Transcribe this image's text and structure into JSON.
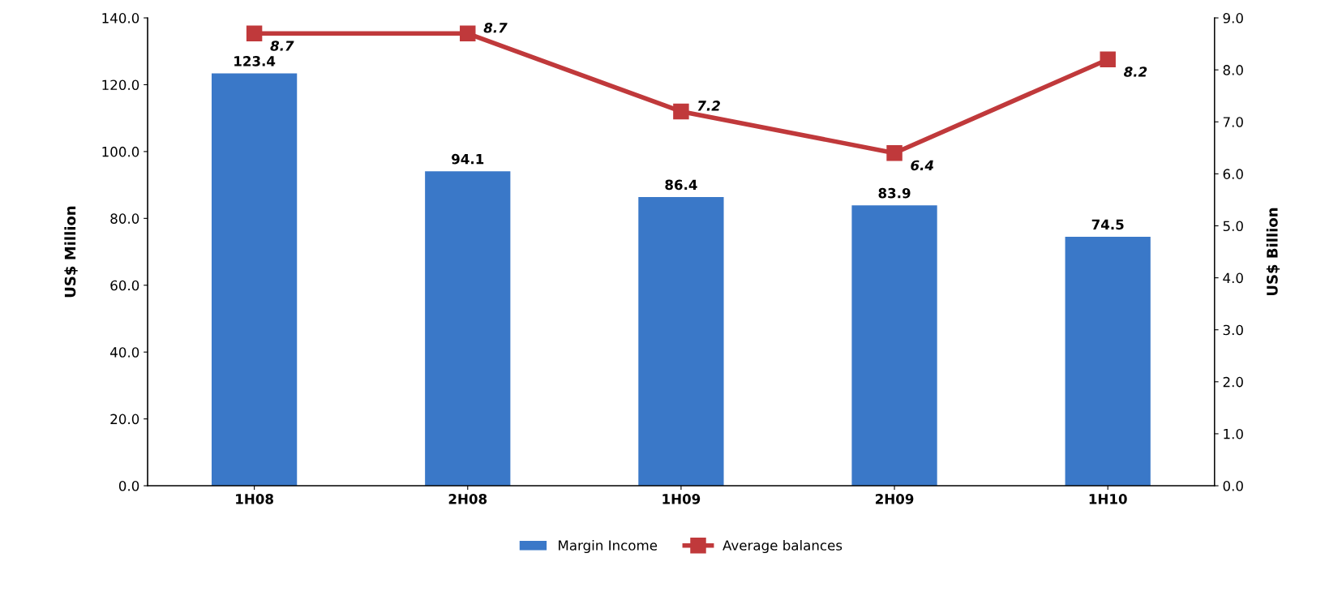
{
  "chart_data": {
    "type": "bar",
    "ylabel": "US$ Million",
    "y2label": "US$ Billion",
    "categories": [
      "1H08",
      "2H08",
      "1H09",
      "2H09",
      "1H10"
    ],
    "series": [
      {
        "name": "Margin Income",
        "color": "#3a78c8",
        "values": [
          123.4,
          94.1,
          86.4,
          83.9,
          74.5
        ],
        "value_labels": [
          "123.4",
          "94.1",
          "86.4",
          "83.9",
          "74.5"
        ]
      },
      {
        "name": "Average balances",
        "type": "line",
        "axis": "y2",
        "color": "#c0393b",
        "marker": "square",
        "values": [
          8.7,
          8.7,
          7.2,
          6.4,
          8.2
        ],
        "value_labels": [
          "8.7",
          "8.7",
          "7.2",
          "6.4",
          "8.2"
        ]
      }
    ],
    "ylim": [
      0,
      140
    ],
    "yticks": [
      {
        "value": 0,
        "label": "0.0"
      },
      {
        "value": 20,
        "label": "20.0"
      },
      {
        "value": 40,
        "label": "40.0"
      },
      {
        "value": 60,
        "label": "60.0"
      },
      {
        "value": 80,
        "label": "80.0"
      },
      {
        "value": 100,
        "label": "100.0"
      },
      {
        "value": 120,
        "label": "120.0"
      },
      {
        "value": 140,
        "label": "140.0"
      }
    ],
    "y2lim": [
      0,
      9
    ],
    "y2ticks": [
      {
        "value": 0,
        "label": "0.0"
      },
      {
        "value": 1,
        "label": "1.0"
      },
      {
        "value": 2,
        "label": "2.0"
      },
      {
        "value": 3,
        "label": "3.0"
      },
      {
        "value": 4,
        "label": "4.0"
      },
      {
        "value": 5,
        "label": "5.0"
      },
      {
        "value": 6,
        "label": "6.0"
      },
      {
        "value": 7,
        "label": "7.0"
      },
      {
        "value": 8,
        "label": "8.0"
      },
      {
        "value": 9,
        "label": "9.0"
      }
    ],
    "grid": false,
    "legend": "bottom"
  }
}
